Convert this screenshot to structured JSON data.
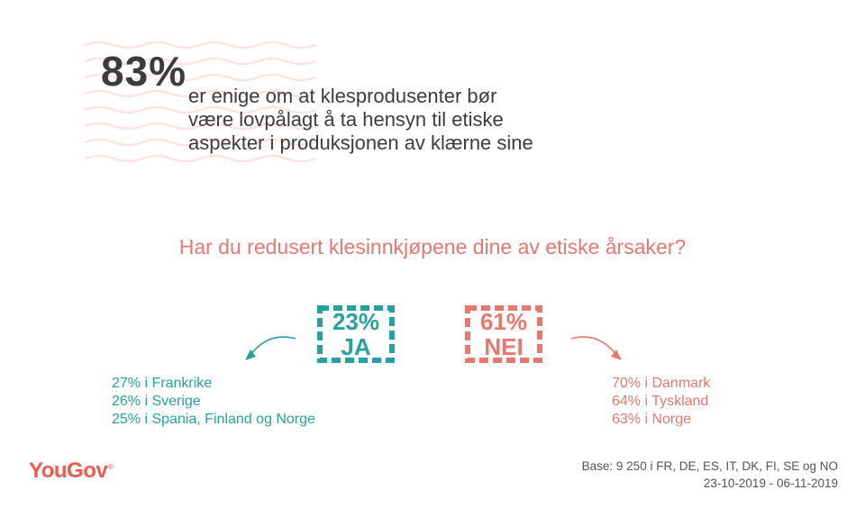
{
  "headline": {
    "stat": "83%",
    "lines": [
      "er enige om at klesprodusenter bør",
      "være lovpålagt å ta hensyn til etiske",
      "aspekter i produksjonen av klærne sine"
    ]
  },
  "question": "Har du redusert klesinnkjøpene dine av etiske årsaker?",
  "chart_data": {
    "type": "table",
    "title": "Har du redusert klesinnkjøpene dine av etiske årsaker?",
    "answers": [
      {
        "percent": "23%",
        "label": "JA",
        "value": 23,
        "countries": [
          "27% i Frankrike",
          "26% i Sverige",
          "25% i Spania, Finland og Norge"
        ]
      },
      {
        "percent": "61%",
        "label": "NEI",
        "value": 61,
        "countries": [
          "70% i Danmark",
          "64% i Tyskland",
          "63% i Norge"
        ]
      }
    ]
  },
  "footer": {
    "logo": "YouGov",
    "logo_mark": "®",
    "base": "Base: 9 250 i FR, DE, ES, IT, DK, FI, SE og NO",
    "dates": "23-10-2019 - 06-11-2019"
  },
  "colors": {
    "teal": "#26a1a1",
    "coral": "#e8786d",
    "text": "#3c3c3c",
    "logo": "#ee5b4c"
  }
}
